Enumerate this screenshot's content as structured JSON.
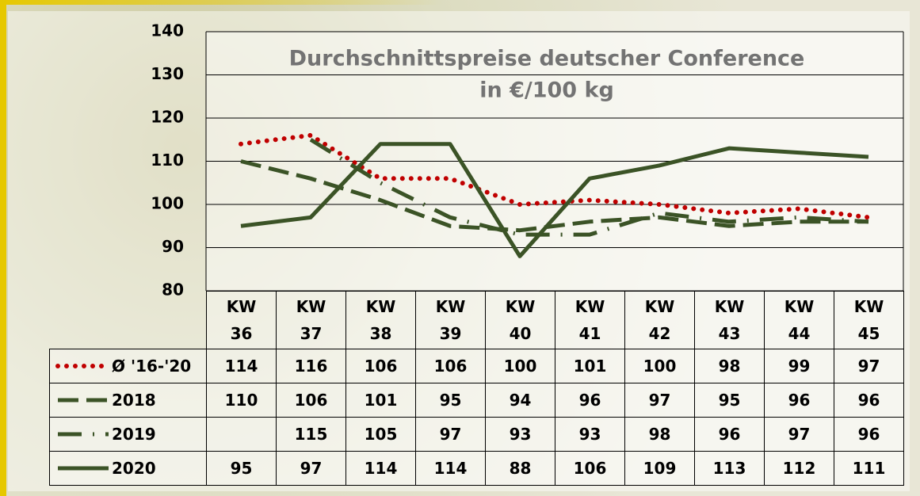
{
  "chart_data": {
    "type": "line",
    "title": "Durchschnittspreise deutscher Conference",
    "subtitle": "in €/100 kg",
    "categories": [
      "KW 36",
      "KW 37",
      "KW 38",
      "KW 39",
      "KW 40",
      "KW 41",
      "KW 42",
      "KW 43",
      "KW 44",
      "KW 45"
    ],
    "series": [
      {
        "name": "Ø '16-'20",
        "color": "#c00000",
        "dash": "dotted",
        "values": [
          114,
          116,
          106,
          106,
          100,
          101,
          100,
          98,
          99,
          97
        ]
      },
      {
        "name": "2018",
        "color": "#3b5326",
        "dash": "dashed",
        "values": [
          110,
          106,
          101,
          95,
          94,
          96,
          97,
          95,
          96,
          96
        ]
      },
      {
        "name": "2019",
        "color": "#3b5326",
        "dash": "dashdot",
        "values": [
          null,
          115,
          105,
          97,
          93,
          93,
          98,
          96,
          97,
          96
        ]
      },
      {
        "name": "2020",
        "color": "#3b5326",
        "dash": "solid",
        "values": [
          95,
          97,
          114,
          114,
          88,
          106,
          109,
          113,
          112,
          111
        ]
      }
    ],
    "ylim": [
      80,
      140
    ],
    "yticks": [
      80,
      90,
      100,
      110,
      120,
      130,
      140
    ],
    "grid": true
  }
}
